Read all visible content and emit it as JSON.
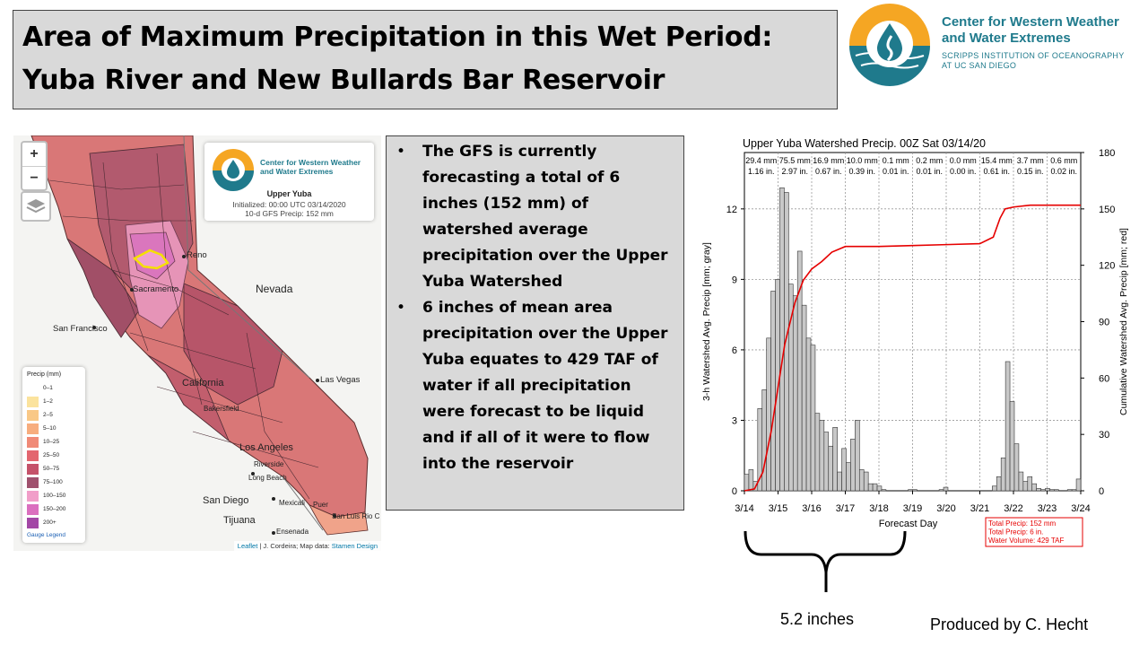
{
  "title": {
    "line1": "Area of Maximum Precipitation in this Wet Period:",
    "line2": "Yuba River and New Bullards Bar Reservoir"
  },
  "logo": {
    "name_line1": "Center for Western Weather",
    "name_line2": "and Water Extremes",
    "sub_line1": "SCRIPPS INSTITUTION OF OCEANOGRAPHY",
    "sub_line2": "AT UC SAN DIEGO",
    "colors": {
      "orange": "#f5a623",
      "blue": "#1f7a8c"
    },
    "icon": "water-drop-logo-icon"
  },
  "map": {
    "zoom_in": "+",
    "zoom_out": "−",
    "layers_icon": "layers-icon",
    "info": {
      "logo_line1": "Center for Western Weather",
      "logo_line2": "and Water Extremes",
      "title": "Upper Yuba",
      "initialized": "Initialized: 00:00 UTC 03/14/2020",
      "precip": "10-d GFS Precip: 152 mm"
    },
    "legend": {
      "title": "Precip (mm)",
      "items": [
        {
          "label": "0–1",
          "color": "#ffffff"
        },
        {
          "label": "1–2",
          "color": "#fbe39d"
        },
        {
          "label": "2–5",
          "color": "#f9c886"
        },
        {
          "label": "5–10",
          "color": "#f7ad7e"
        },
        {
          "label": "10–25",
          "color": "#f08a77"
        },
        {
          "label": "25–50",
          "color": "#e3666f"
        },
        {
          "label": "50–75",
          "color": "#c5526a"
        },
        {
          "label": "75–100",
          "color": "#a0516e"
        },
        {
          "label": "100–150",
          "color": "#f19ec9"
        },
        {
          "label": "150–200",
          "color": "#db6fbf"
        },
        {
          "label": "200+",
          "color": "#a347a6"
        }
      ],
      "link": "Gauge Legend"
    },
    "labels": {
      "nevada": "Nevada",
      "reno": "Reno",
      "sacramento": "Sacramento",
      "san_francisco": "San Francisco",
      "california": "California",
      "las_vegas": "Las Vegas",
      "bakersfield": "Bakersfield",
      "los_angeles": "Los Angeles",
      "riverside": "Riverside",
      "long_beach": "Long Beach",
      "san_diego": "San Diego",
      "tijuana": "Tijuana",
      "mexicali": "Mexicali",
      "puerto": "Puer",
      "san_luis": "San Luis Rio C",
      "ensenada": "Ensenada"
    },
    "attribution": {
      "leaflet": "Leaflet",
      "middle": " | J. Cordeira; Map data: ",
      "stamen": "Stamen Design"
    }
  },
  "bullets": [
    "The GFS is currently forecasting a total of 6 inches (152 mm) of watershed average precipitation over the Upper Yuba Watershed",
    "6 inches of mean area precipitation over the Upper Yuba equates to 429 TAF of water if all precipitation were forecast to be liquid and if all of it were to flow into the reservoir"
  ],
  "chart_data": {
    "type": "bar",
    "title": "Upper Yuba Watershed Precip. 00Z Sat 03/14/20",
    "xlabel": "Forecast Day",
    "ylabel_left": "3-h Watershed Avg. Precip [mm; gray]",
    "ylabel_right": "Cumulative Watershed Avg. Precip [mm; red]",
    "x_ticks": [
      "3/14",
      "3/15",
      "3/16",
      "3/17",
      "3/18",
      "3/19",
      "3/20",
      "3/21",
      "3/22",
      "3/23",
      "3/24"
    ],
    "ylim_left": [
      0,
      14.4
    ],
    "yticks_left": [
      0,
      3,
      6,
      9,
      12
    ],
    "ylim_right": [
      0,
      180
    ],
    "yticks_right": [
      0,
      30,
      60,
      90,
      120,
      150,
      180
    ],
    "bar_color": "#c8c8c8",
    "line_color": "#e60000",
    "daily_totals": [
      {
        "mm": "29.4 mm",
        "in": "1.16 in."
      },
      {
        "mm": "75.5 mm",
        "in": "2.97 in."
      },
      {
        "mm": "16.9 mm",
        "in": "0.67 in."
      },
      {
        "mm": "10.0 mm",
        "in": "0.39 in."
      },
      {
        "mm": "0.1 mm",
        "in": "0.01 in."
      },
      {
        "mm": "0.2 mm",
        "in": "0.01 in."
      },
      {
        "mm": "0.0 mm",
        "in": "0.00 in."
      },
      {
        "mm": "15.4 mm",
        "in": "0.61 in."
      },
      {
        "mm": "3.7 mm",
        "in": "0.15 in."
      },
      {
        "mm": "0.6 mm",
        "in": "0.02 in."
      }
    ],
    "bars_3h_mm": [
      0.7,
      0.9,
      0.4,
      3.5,
      4.3,
      6.5,
      8.5,
      9.0,
      12.9,
      12.7,
      8.8,
      8.3,
      10.2,
      7.9,
      6.5,
      6.2,
      3.3,
      3.0,
      2.5,
      1.9,
      2.7,
      0.8,
      1.8,
      1.2,
      2.2,
      3.0,
      0.9,
      0.8,
      0.3,
      0.3,
      0.2,
      0.05,
      0,
      0,
      0,
      0,
      0,
      0.05,
      0.05,
      0,
      0,
      0,
      0,
      0,
      0.05,
      0.15,
      0,
      0,
      0,
      0,
      0,
      0,
      0,
      0,
      0,
      0,
      0.2,
      0.6,
      1.4,
      5.5,
      3.8,
      2.0,
      0.8,
      0.4,
      0.6,
      0.3,
      0.1,
      0.05,
      0.1,
      0.05,
      0.05,
      0,
      0,
      0.05,
      0.05,
      0.5
    ],
    "cumulative": {
      "x": [
        0,
        0.3,
        0.55,
        0.8,
        1.0,
        1.2,
        1.5,
        1.75,
        2.0,
        2.3,
        2.6,
        3.0,
        3.5,
        4.0,
        5.0,
        6.0,
        7.0,
        7.4,
        7.6,
        7.75,
        8.0,
        8.5,
        9.0,
        10.0
      ],
      "y": [
        0,
        1,
        10,
        32,
        55,
        78,
        100,
        112,
        118,
        122,
        127,
        130,
        130,
        130,
        130.5,
        131,
        131.5,
        135,
        145,
        150,
        151,
        152,
        152,
        152
      ]
    },
    "summary": [
      "Total Precip: 152 mm",
      "Total Precip: 6 in.",
      "Water Volume: 429 TAF"
    ]
  },
  "annotation": "5.2 inches",
  "credit": "Produced by C. Hecht"
}
